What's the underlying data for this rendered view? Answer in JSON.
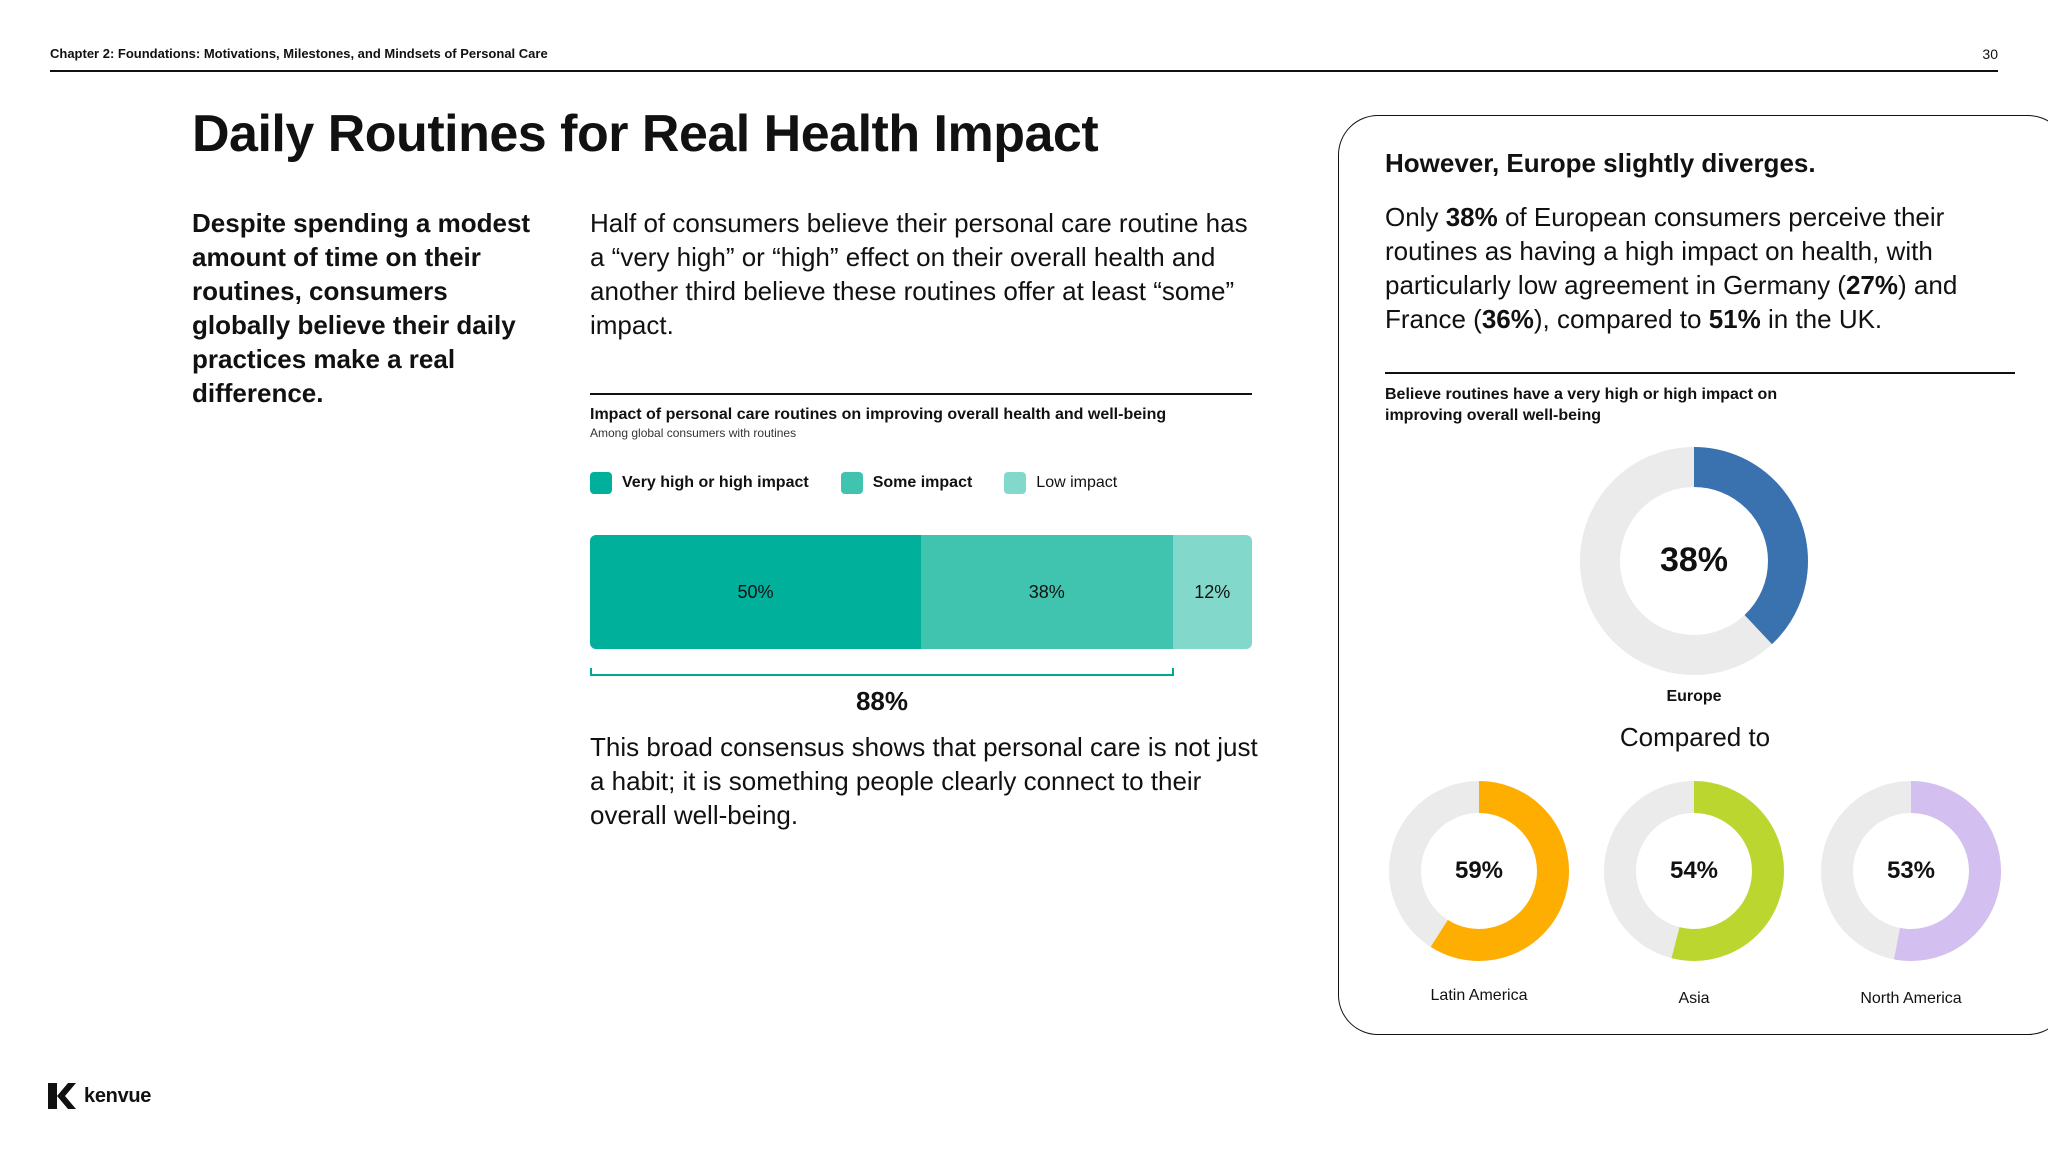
{
  "header": {
    "chapter": "Chapter 2: Foundations: Motivations, Milestones, and Mindsets of Personal Care",
    "page_number": "30"
  },
  "title": "Daily Routines for Real Health Impact",
  "lead": "Despite spending a modest amount of time on their routines, consumers globally believe their daily practices make a real difference.",
  "intro": "Half of consumers believe their personal care routine has a “very high” or “high” effect on their overall health and another third believe these routines offer at least “some” impact.",
  "conclusion": "This broad consensus shows that personal care is not just a habit; it is something people clearly connect to their overall well-being.",
  "chart_data": [
    {
      "type": "bar",
      "orientation": "horizontal-stacked",
      "title": "Impact of personal care routines on improving overall health and well-being",
      "subtitle": "Among global consumers with routines",
      "series": [
        {
          "name": "Very high or high impact",
          "value": 50,
          "label": "50%",
          "color": "#00b09b"
        },
        {
          "name": "Some impact",
          "value": 38,
          "label": "38%",
          "color": "#40c4b0"
        },
        {
          "name": "Low impact",
          "value": 12,
          "label": "12%",
          "color": "#82d9cb"
        }
      ],
      "bracket": {
        "spans": [
          "Very high or high impact",
          "Some impact"
        ],
        "label": "88%"
      }
    },
    {
      "type": "pie",
      "variant": "donut",
      "title": "Believe routines have a very high or high impact on improving overall well-being",
      "categories": [
        "Europe",
        "Latin America",
        "Asia",
        "North America"
      ],
      "values": [
        38,
        59,
        54,
        53
      ],
      "labels": [
        "38%",
        "59%",
        "54%",
        "53%"
      ],
      "colors": [
        "#3a72b0",
        "#fdae00",
        "#bcd630",
        "#d3bff0"
      ],
      "track_color": "#ebebeb",
      "compared_label": "Compared to"
    }
  ],
  "panel": {
    "heading": "However, Europe slightly diverges.",
    "text_parts": [
      {
        "text": "Only ",
        "bold": false
      },
      {
        "text": "38%",
        "bold": true
      },
      {
        "text": " of European consumers perceive their routines as having a high impact on health, with particularly low agreement in Germany (",
        "bold": false
      },
      {
        "text": "27%",
        "bold": true
      },
      {
        "text": ") and France (",
        "bold": false
      },
      {
        "text": "36%",
        "bold": true
      },
      {
        "text": "), compared to ",
        "bold": false
      },
      {
        "text": "51%",
        "bold": true
      },
      {
        "text": " in the UK.",
        "bold": false
      }
    ]
  },
  "logo": {
    "word": "kenvue",
    "icon": "kenvue-k-icon"
  }
}
